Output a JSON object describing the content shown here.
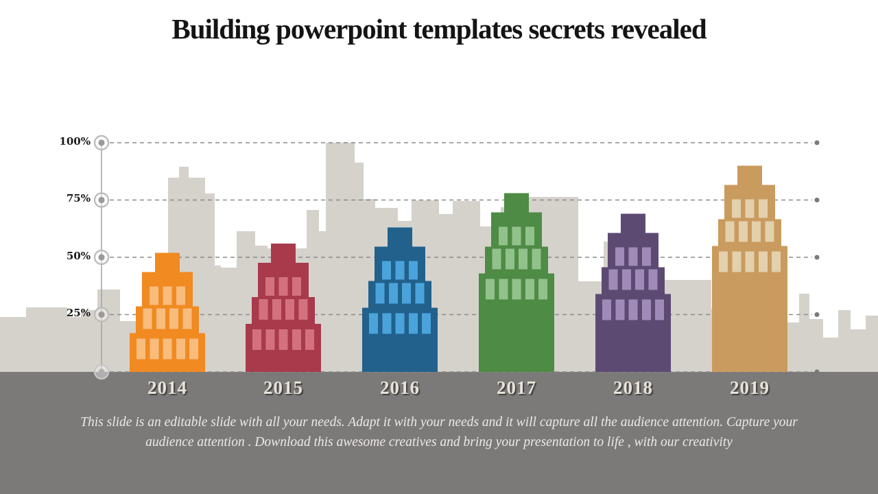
{
  "title": "Building powerpoint templates secrets revealed",
  "description": "This slide is an editable slide with all your needs. Adapt it with your needs and it will capture all the audience attention. Capture your audience attention . Download this awesome creatives and bring your presentation to life , with our creativity",
  "chart_data": {
    "type": "bar",
    "title": "Building powerpoint templates secrets revealed",
    "categories": [
      "2014",
      "2015",
      "2016",
      "2017",
      "2018",
      "2019"
    ],
    "values": [
      52,
      56,
      63,
      78,
      69,
      90
    ],
    "unit": "%",
    "xlabel": "",
    "ylabel": "",
    "ylim": [
      0,
      100
    ],
    "yticks": [
      "25%",
      "50%",
      "75%",
      "100%"
    ],
    "ytick_values": [
      25,
      50,
      75,
      100
    ],
    "grid": "dashed horizontal gridlines with end dots",
    "legend": "none",
    "bar_style": "tiered skyscraper buildings with windows",
    "series_colors": [
      {
        "name": "2014",
        "body": "#F08A21",
        "window": "#F8BC7D"
      },
      {
        "name": "2015",
        "body": "#A83A4C",
        "window": "#D4717F"
      },
      {
        "name": "2016",
        "body": "#21618C",
        "window": "#4AA4DB"
      },
      {
        "name": "2017",
        "body": "#4E8B45",
        "window": "#92C28B"
      },
      {
        "name": "2018",
        "body": "#5D4A73",
        "window": "#A08BB8"
      },
      {
        "name": "2019",
        "body": "#C99B5E",
        "window": "#E3D0AC"
      }
    ]
  },
  "palette": {
    "background": "#FFFFFF",
    "skyline": "#D5D2CC",
    "ground": "#7C7979",
    "axis_line": "#A3A1A0",
    "gridline": "#8A8A8A",
    "grid_end_dot": "#7A7878",
    "marker_ring": "#BDBBBA",
    "marker_dot": "#9C9A99",
    "title_color": "#141414",
    "tick_label_color": "#1A1A1A",
    "year_label_color": "#E8E2D9",
    "description_color": "#ECE9E6"
  }
}
